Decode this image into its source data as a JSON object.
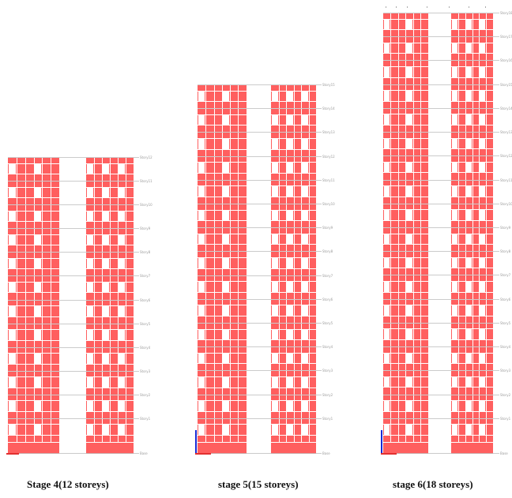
{
  "figure": {
    "stages": [
      {
        "caption": "Stage 4(12 storeys)",
        "storey_count": 12,
        "storey_labels": [
          "Story12",
          "Story11",
          "Story10",
          "Story9",
          "Story8",
          "Story7",
          "Story6",
          "Story5",
          "Story4",
          "Story3",
          "Story2",
          "Story1",
          "Base"
        ],
        "show_axis": false
      },
      {
        "caption": "stage 5(15 storeys)",
        "storey_count": 15,
        "storey_labels": [
          "Story15",
          "Story14",
          "Story13",
          "Story12",
          "Story11",
          "Story10",
          "Story9",
          "Story8",
          "Story7",
          "Story6",
          "Story5",
          "Story4",
          "Story3",
          "Story2",
          "Story1",
          "Base"
        ],
        "show_axis": true
      },
      {
        "caption": "stage 6(18 storeys)",
        "storey_count": 18,
        "storey_labels": [
          "Story18",
          "Story17",
          "Story16",
          "Story15",
          "Story14",
          "Story13",
          "Story12",
          "Story11",
          "Story10",
          "Story9",
          "Story8",
          "Story7",
          "Story6",
          "Story5",
          "Story4",
          "Story3",
          "Story2",
          "Story1",
          "Base"
        ],
        "show_axis": true
      }
    ],
    "colors": {
      "wall": "#ff6464",
      "window": "#ffffff",
      "floor_line": "#cfcfcf",
      "axis_z": "#1a2bd6",
      "axis_x": "#e23030"
    }
  }
}
